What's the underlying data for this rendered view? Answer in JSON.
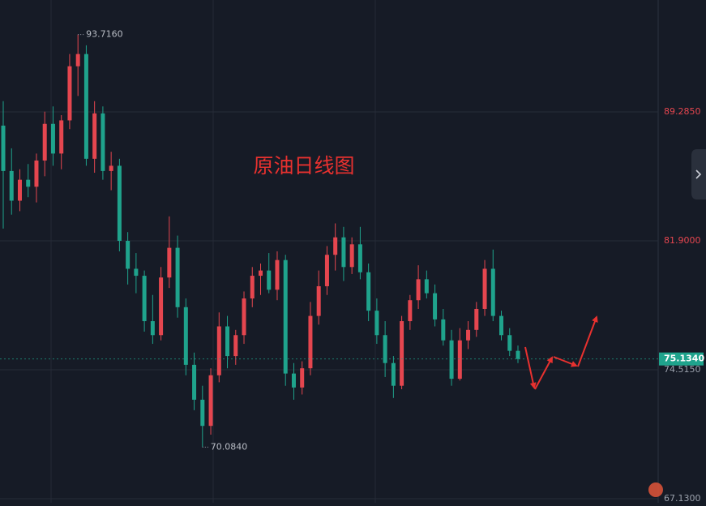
{
  "chart_data": {
    "type": "candlestick",
    "title": "原油日线图",
    "up_color": "#e5464f",
    "down_color": "#1fa38c",
    "ylim": [
      66.898,
      95.695
    ],
    "yticks": [
      {
        "value": 67.13,
        "label": "67.1300"
      },
      {
        "value": 74.515,
        "label": "74.5150"
      },
      {
        "value": 81.9,
        "label": "81.9000"
      },
      {
        "value": 89.285,
        "label": "89.2850"
      }
    ],
    "grid": true,
    "high_label": {
      "value": 93.716,
      "label": "93.7160"
    },
    "low_label": {
      "value": 70.084,
      "label": "70.0840"
    },
    "last_price": {
      "value": 75.134,
      "label": "75.1340"
    },
    "series": {
      "open": [
        88.5,
        85.9,
        84.2,
        85.4,
        85.0,
        86.5,
        88.6,
        86.9,
        88.8,
        91.9,
        92.6,
        86.6,
        89.2,
        85.9,
        86.2,
        81.9,
        80.3,
        79.9,
        77.3,
        76.5,
        79.8,
        81.5,
        78.1,
        74.8,
        72.8,
        71.3,
        74.2,
        77.0,
        75.3,
        76.5,
        78.6,
        79.9,
        80.2,
        79.1,
        80.8,
        74.3,
        73.5,
        74.6,
        77.6,
        79.3,
        81.1,
        82.1,
        80.4,
        81.7,
        80.1,
        77.9,
        76.5,
        74.9,
        73.6,
        77.3,
        78.5,
        79.7,
        78.9,
        77.4,
        76.2,
        74.0,
        76.2,
        76.8,
        78.0,
        80.3,
        77.6,
        76.5,
        75.6
      ],
      "high": [
        89.9,
        87.2,
        86.0,
        86.3,
        86.9,
        89.3,
        89.6,
        89.1,
        92.6,
        93.716,
        93.1,
        89.9,
        89.6,
        87.0,
        86.6,
        82.4,
        81.2,
        80.2,
        78.8,
        80.4,
        83.3,
        82.2,
        78.6,
        75.5,
        73.6,
        74.6,
        77.8,
        77.6,
        76.8,
        79.0,
        80.4,
        80.6,
        81.2,
        81.3,
        81.1,
        74.9,
        75.0,
        78.4,
        80.2,
        81.6,
        82.9,
        82.7,
        82.1,
        82.7,
        80.6,
        78.6,
        77.3,
        75.3,
        77.6,
        78.8,
        80.5,
        80.2,
        79.4,
        78.0,
        76.8,
        76.9,
        77.3,
        78.4,
        80.8,
        81.4,
        77.9,
        76.9,
        75.9
      ],
      "low": [
        82.6,
        83.4,
        83.6,
        84.4,
        84.1,
        85.6,
        86.2,
        86.0,
        88.3,
        90.2,
        86.2,
        85.8,
        85.4,
        84.8,
        81.3,
        79.4,
        78.9,
        76.7,
        76.0,
        76.2,
        79.2,
        77.5,
        74.2,
        72.2,
        70.084,
        70.8,
        73.8,
        74.6,
        74.8,
        76.0,
        78.1,
        78.8,
        78.9,
        78.5,
        73.6,
        72.8,
        73.1,
        74.2,
        77.1,
        78.8,
        80.2,
        79.6,
        80.0,
        79.7,
        77.3,
        76.0,
        74.1,
        72.9,
        73.4,
        76.8,
        78.0,
        78.6,
        77.0,
        75.9,
        73.6,
        73.9,
        75.7,
        76.4,
        77.6,
        77.3,
        76.2,
        75.3,
        74.9
      ],
      "close": [
        85.9,
        84.2,
        85.4,
        85.0,
        86.5,
        88.6,
        86.9,
        88.8,
        91.9,
        92.6,
        86.6,
        89.2,
        85.9,
        86.2,
        81.9,
        80.3,
        79.9,
        77.3,
        76.5,
        79.8,
        81.5,
        78.1,
        74.8,
        72.8,
        71.3,
        74.2,
        77.0,
        75.3,
        76.5,
        78.6,
        79.9,
        80.2,
        79.1,
        80.8,
        74.3,
        73.5,
        74.6,
        77.6,
        79.3,
        81.1,
        82.1,
        80.4,
        81.7,
        80.1,
        77.9,
        76.5,
        74.9,
        73.6,
        77.3,
        78.5,
        79.7,
        78.9,
        77.4,
        76.2,
        74.0,
        76.2,
        76.8,
        78.0,
        80.3,
        77.6,
        76.5,
        75.6,
        75.134
      ]
    }
  }
}
